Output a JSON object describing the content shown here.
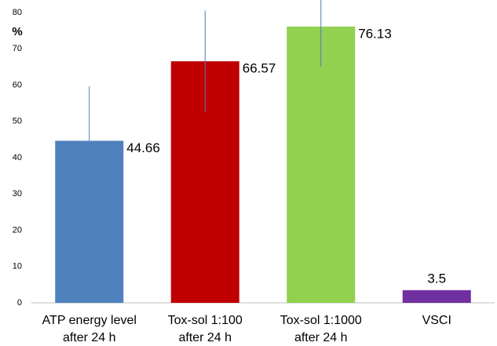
{
  "chart_data": {
    "type": "bar",
    "y_label": "%",
    "categories": [
      [
        "ATP energy level",
        "after 24 h"
      ],
      [
        "Tox-sol 1:100",
        "after 24 h"
      ],
      [
        "Tox-sol 1:1000",
        "after 24 h"
      ],
      [
        "VSCI"
      ]
    ],
    "values": [
      44.66,
      66.57,
      76.13,
      3.5
    ],
    "errors": [
      15,
      14,
      11,
      null
    ],
    "colors": [
      "#4f81bd",
      "#c00000",
      "#92d050",
      "#7030a0"
    ],
    "error_color": "#4a7ebb",
    "ylim": [
      0,
      80
    ],
    "yticks": [
      0,
      10,
      20,
      30,
      40,
      50,
      60,
      70,
      80
    ]
  }
}
